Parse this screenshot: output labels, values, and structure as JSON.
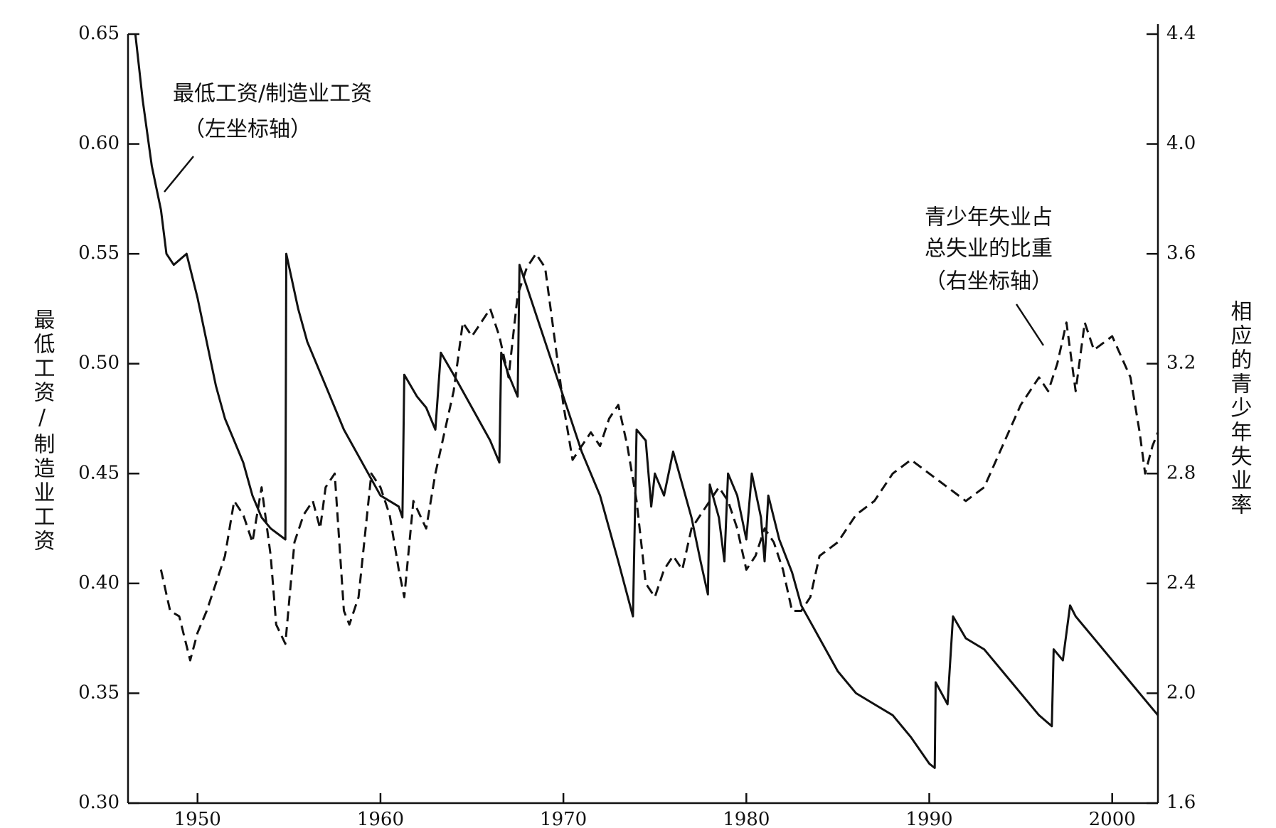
{
  "chart_data": {
    "type": "line",
    "y_label": "最低工资/制造业工资",
    "y2_label": "相应的青少年失业率",
    "annotations": [
      {
        "lines": [
          "最低工资/制造业工资",
          "（左坐标轴）"
        ]
      },
      {
        "lines": [
          "青少年失业占",
          "总失业的比重",
          "（右坐标轴）"
        ]
      }
    ],
    "xlim": [
      1946.2,
      2002.5
    ],
    "xticks": [
      1950,
      1960,
      1970,
      1980,
      1990,
      2000
    ],
    "ylim": [
      0.3,
      0.65
    ],
    "yticks": [
      {
        "value": 0.3,
        "label": "0.30"
      },
      0.35,
      {
        "value": 0.4,
        "label": "0.40"
      },
      0.45,
      {
        "value": 0.5,
        "label": "0.50"
      },
      0.55,
      {
        "value": 0.6,
        "label": "0.60"
      },
      0.65
    ],
    "y2lim": [
      1.6,
      4.4
    ],
    "y2ticks": [
      1.6,
      {
        "value": 2.0,
        "label": "2.0"
      },
      2.4,
      2.8,
      3.2,
      3.6,
      {
        "value": 4.0,
        "label": "4.0"
      },
      4.4
    ],
    "series": [
      {
        "color": "#111111",
        "dash": "solid",
        "axis": "y",
        "x": [
          1946.6,
          1947,
          1947.5,
          1948,
          1948.3,
          1948.7,
          1949.4,
          1950,
          1950.5,
          1951,
          1951.5,
          1952,
          1952.5,
          1953,
          1953.5,
          1954,
          1954.8,
          1954.85,
          1955.5,
          1956,
          1957,
          1958,
          1959,
          1960,
          1961,
          1961.2,
          1961.3,
          1962,
          1962.5,
          1963,
          1963.3,
          1964,
          1965,
          1966,
          1966.5,
          1966.6,
          1967,
          1967.5,
          1967.6,
          1968,
          1969,
          1970,
          1971,
          1972,
          1973,
          1973.8,
          1974,
          1974.5,
          1974.8,
          1975,
          1975.5,
          1976,
          1976.5,
          1977,
          1977.5,
          1977.9,
          1978,
          1978.5,
          1978.8,
          1979,
          1979.5,
          1980,
          1980.3,
          1980.8,
          1981,
          1981.2,
          1981.8,
          1982.5,
          1983,
          1984,
          1985,
          1986,
          1987,
          1988,
          1989,
          1990,
          1990.3,
          1990.35,
          1991,
          1991.3,
          1992,
          1993,
          1994,
          1995,
          1996,
          1996.7,
          1996.8,
          1997.3,
          1997.7,
          1998,
          1999,
          2000,
          2001,
          2002,
          2002.5
        ],
        "values": [
          0.65,
          0.62,
          0.59,
          0.57,
          0.55,
          0.545,
          0.55,
          0.53,
          0.51,
          0.49,
          0.475,
          0.465,
          0.455,
          0.44,
          0.43,
          0.425,
          0.42,
          0.55,
          0.525,
          0.51,
          0.49,
          0.47,
          0.455,
          0.44,
          0.435,
          0.43,
          0.495,
          0.485,
          0.48,
          0.47,
          0.505,
          0.495,
          0.48,
          0.465,
          0.455,
          0.505,
          0.495,
          0.485,
          0.545,
          0.535,
          0.51,
          0.485,
          0.46,
          0.44,
          0.41,
          0.385,
          0.47,
          0.465,
          0.435,
          0.45,
          0.44,
          0.46,
          0.445,
          0.43,
          0.41,
          0.395,
          0.445,
          0.43,
          0.41,
          0.45,
          0.44,
          0.42,
          0.45,
          0.43,
          0.41,
          0.44,
          0.42,
          0.405,
          0.39,
          0.375,
          0.36,
          0.35,
          0.345,
          0.34,
          0.33,
          0.318,
          0.316,
          0.355,
          0.345,
          0.385,
          0.375,
          0.37,
          0.36,
          0.35,
          0.34,
          0.335,
          0.37,
          0.365,
          0.39,
          0.385,
          0.375,
          0.365,
          0.355,
          0.345,
          0.34
        ]
      },
      {
        "color": "#111111",
        "dash": "dashed",
        "axis": "y2",
        "x": [
          1948,
          1948.5,
          1949,
          1949.6,
          1950,
          1950.5,
          1951,
          1951.5,
          1952,
          1952.5,
          1953,
          1953.5,
          1954,
          1954.3,
          1954.8,
          1955.3,
          1955.8,
          1956.3,
          1956.7,
          1957,
          1957.5,
          1958,
          1958.3,
          1958.8,
          1959.5,
          1960,
          1960.5,
          1961,
          1961.3,
          1961.8,
          1962.5,
          1963,
          1963.5,
          1964,
          1964.5,
          1965,
          1965.5,
          1966,
          1966.5,
          1967,
          1967.5,
          1968,
          1968.5,
          1969,
          1969.5,
          1970,
          1970.5,
          1971,
          1971.5,
          1972,
          1972.5,
          1973,
          1973.5,
          1974,
          1974.5,
          1975,
          1975.5,
          1976,
          1976.5,
          1977,
          1978,
          1978.5,
          1979,
          1979.5,
          1980,
          1980.5,
          1981,
          1981.5,
          1982,
          1982.5,
          1983,
          1983.5,
          1984,
          1985,
          1986,
          1987,
          1988,
          1989,
          1990,
          1991,
          1992,
          1993,
          1994,
          1995,
          1996,
          1996.5,
          1997,
          1997.5,
          1998,
          1998.5,
          1999,
          2000,
          2001,
          2001.5,
          2001.8,
          2002.2,
          2002.5
        ],
        "values": [
          2.45,
          2.3,
          2.28,
          2.12,
          2.22,
          2.3,
          2.4,
          2.5,
          2.7,
          2.65,
          2.55,
          2.75,
          2.5,
          2.25,
          2.18,
          2.55,
          2.65,
          2.7,
          2.6,
          2.75,
          2.8,
          2.3,
          2.25,
          2.35,
          2.8,
          2.75,
          2.65,
          2.45,
          2.35,
          2.7,
          2.6,
          2.8,
          2.95,
          3.1,
          3.35,
          3.3,
          3.35,
          3.4,
          3.3,
          3.15,
          3.45,
          3.55,
          3.6,
          3.55,
          3.3,
          3.05,
          2.85,
          2.9,
          2.95,
          2.9,
          3.0,
          3.05,
          2.9,
          2.7,
          2.4,
          2.35,
          2.45,
          2.5,
          2.45,
          2.6,
          2.7,
          2.75,
          2.7,
          2.6,
          2.45,
          2.5,
          2.6,
          2.55,
          2.45,
          2.3,
          2.3,
          2.35,
          2.5,
          2.55,
          2.65,
          2.7,
          2.8,
          2.85,
          2.8,
          2.75,
          2.7,
          2.75,
          2.9,
          3.05,
          3.15,
          3.1,
          3.2,
          3.35,
          3.1,
          3.35,
          3.25,
          3.3,
          3.15,
          2.95,
          2.8,
          2.9,
          2.95
        ]
      }
    ]
  }
}
